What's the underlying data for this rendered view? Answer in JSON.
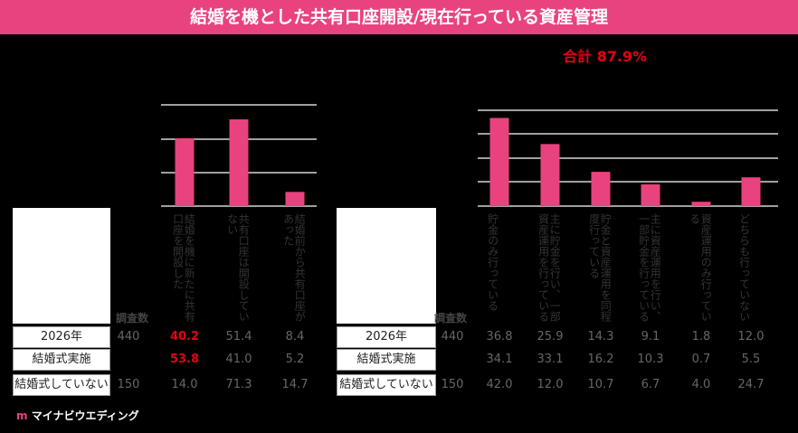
{
  "title": "結婚を機とした共有口座開設/現在行っている資産管理",
  "total_label": "合計 87.9%",
  "header_count": "調査数",
  "rows": [
    {
      "label": "2026年",
      "n": "440"
    },
    {
      "label": "結婚式実施",
      "n": ""
    },
    {
      "label": "結婚式していない",
      "n": "150"
    }
  ],
  "chart_data": [
    {
      "type": "bar",
      "categories": [
        "結婚を機に新たに共有口座を開設した",
        "共有口座は開設していない",
        "結婚前から共有口座があった"
      ],
      "values": [
        40.2,
        51.4,
        8.4
      ],
      "table": [
        [
          "40.2",
          "51.4",
          "8.4"
        ],
        [
          "53.8",
          "41.0",
          "5.2"
        ],
        [
          "14.0",
          "71.3",
          "14.7"
        ]
      ],
      "highlight": [
        [
          0,
          0
        ],
        [
          1,
          0
        ]
      ],
      "ylim": [
        0,
        60
      ]
    },
    {
      "type": "bar",
      "categories": [
        "貯金のみ行っている",
        "主に貯金を行い、一部資産運用を行っている",
        "貯金と資産運用を同程度行っている",
        "主に資産運用を行い、一部貯金を行っている",
        "資産運用のみ行っている",
        "どちらも行っていない"
      ],
      "values": [
        36.8,
        25.9,
        14.3,
        9.1,
        1.8,
        12.0
      ],
      "table": [
        [
          "36.8",
          "25.9",
          "14.3",
          "9.1",
          "1.8",
          "12.0"
        ],
        [
          "34.1",
          "33.1",
          "16.2",
          "10.3",
          "0.7",
          "5.5"
        ],
        [
          "42.0",
          "12.0",
          "10.7",
          "6.7",
          "4.0",
          "24.7"
        ]
      ],
      "ylim": [
        0,
        40
      ]
    }
  ],
  "colors": {
    "bar": "#e8437e",
    "accent": "#e60012",
    "header_bg": "#e8437e"
  },
  "logo": {
    "mark": "m",
    "text": "マイナビウエディング"
  }
}
